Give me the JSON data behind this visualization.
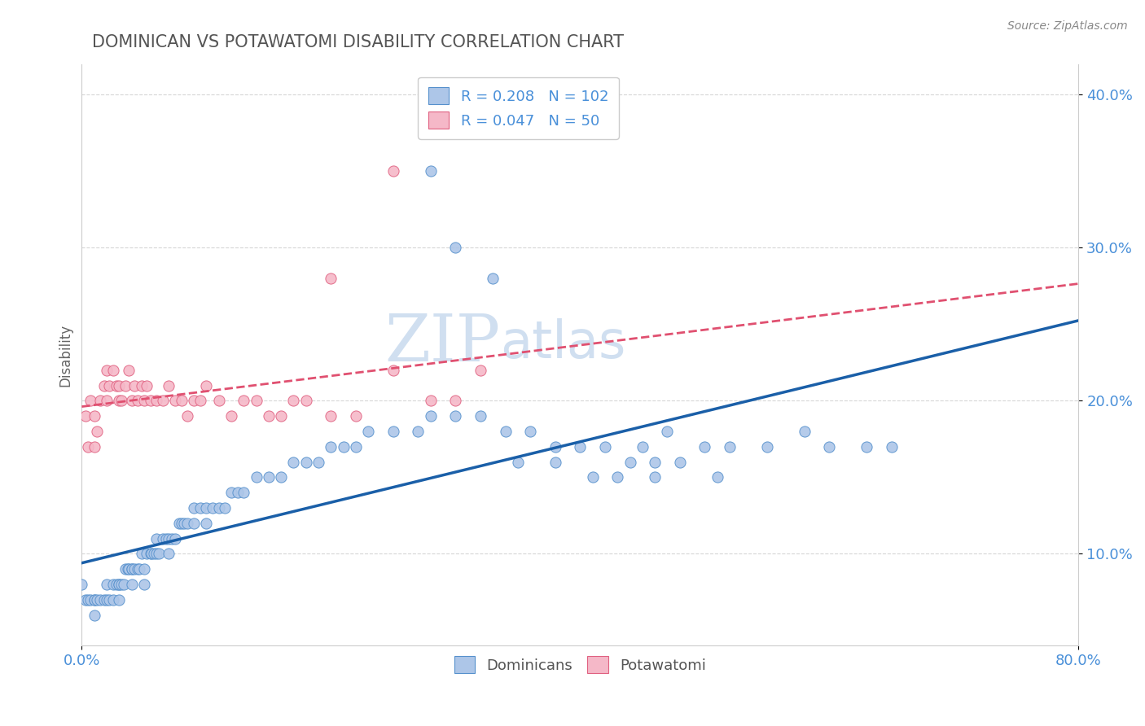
{
  "title": "DOMINICAN VS POTAWATOMI DISABILITY CORRELATION CHART",
  "source": "Source: ZipAtlas.com",
  "ylabel": "Disability",
  "watermark": "ZIPAtlas",
  "blue_label": "Dominicans",
  "pink_label": "Potawatomi",
  "blue_R": 0.208,
  "blue_N": 102,
  "pink_R": 0.047,
  "pink_N": 50,
  "blue_dot_color": "#adc6e8",
  "blue_edge_color": "#5590cc",
  "pink_dot_color": "#f5b8c8",
  "pink_edge_color": "#e06080",
  "blue_line_color": "#1a5fa8",
  "pink_line_color": "#e05070",
  "background_color": "#ffffff",
  "grid_color": "#cccccc",
  "title_color": "#555555",
  "axis_tick_color": "#4a90d9",
  "watermark_color": "#d0dff0",
  "xlim": [
    0.0,
    0.8
  ],
  "ylim": [
    0.04,
    0.42
  ],
  "blue_scatter_x": [
    0.0,
    0.003,
    0.005,
    0.007,
    0.01,
    0.01,
    0.01,
    0.012,
    0.015,
    0.018,
    0.02,
    0.02,
    0.022,
    0.025,
    0.025,
    0.028,
    0.03,
    0.03,
    0.03,
    0.032,
    0.034,
    0.035,
    0.037,
    0.038,
    0.04,
    0.04,
    0.04,
    0.042,
    0.045,
    0.046,
    0.048,
    0.05,
    0.05,
    0.052,
    0.055,
    0.056,
    0.058,
    0.06,
    0.06,
    0.062,
    0.065,
    0.068,
    0.07,
    0.07,
    0.072,
    0.075,
    0.078,
    0.08,
    0.082,
    0.085,
    0.09,
    0.09,
    0.095,
    0.1,
    0.1,
    0.105,
    0.11,
    0.115,
    0.12,
    0.125,
    0.13,
    0.14,
    0.15,
    0.16,
    0.17,
    0.18,
    0.19,
    0.2,
    0.21,
    0.22,
    0.23,
    0.25,
    0.27,
    0.28,
    0.3,
    0.32,
    0.34,
    0.36,
    0.38,
    0.4,
    0.42,
    0.45,
    0.47,
    0.5,
    0.52,
    0.55,
    0.58,
    0.6,
    0.63,
    0.65,
    0.48,
    0.51,
    0.44,
    0.46,
    0.28,
    0.3,
    0.33,
    0.35,
    0.38,
    0.41,
    0.43,
    0.46
  ],
  "blue_scatter_y": [
    0.08,
    0.07,
    0.07,
    0.07,
    0.06,
    0.07,
    0.07,
    0.07,
    0.07,
    0.07,
    0.07,
    0.08,
    0.07,
    0.07,
    0.08,
    0.08,
    0.07,
    0.08,
    0.08,
    0.08,
    0.08,
    0.09,
    0.09,
    0.09,
    0.08,
    0.09,
    0.09,
    0.09,
    0.09,
    0.09,
    0.1,
    0.08,
    0.09,
    0.1,
    0.1,
    0.1,
    0.1,
    0.1,
    0.11,
    0.1,
    0.11,
    0.11,
    0.1,
    0.11,
    0.11,
    0.11,
    0.12,
    0.12,
    0.12,
    0.12,
    0.12,
    0.13,
    0.13,
    0.12,
    0.13,
    0.13,
    0.13,
    0.13,
    0.14,
    0.14,
    0.14,
    0.15,
    0.15,
    0.15,
    0.16,
    0.16,
    0.16,
    0.17,
    0.17,
    0.17,
    0.18,
    0.18,
    0.18,
    0.19,
    0.19,
    0.19,
    0.18,
    0.18,
    0.17,
    0.17,
    0.17,
    0.17,
    0.18,
    0.17,
    0.17,
    0.17,
    0.18,
    0.17,
    0.17,
    0.17,
    0.16,
    0.15,
    0.16,
    0.15,
    0.35,
    0.3,
    0.28,
    0.16,
    0.16,
    0.15,
    0.15,
    0.16
  ],
  "pink_scatter_x": [
    0.003,
    0.005,
    0.007,
    0.01,
    0.01,
    0.012,
    0.015,
    0.018,
    0.02,
    0.02,
    0.022,
    0.025,
    0.028,
    0.03,
    0.03,
    0.032,
    0.035,
    0.038,
    0.04,
    0.042,
    0.045,
    0.048,
    0.05,
    0.052,
    0.055,
    0.06,
    0.065,
    0.07,
    0.075,
    0.08,
    0.085,
    0.09,
    0.095,
    0.1,
    0.11,
    0.12,
    0.13,
    0.14,
    0.15,
    0.16,
    0.17,
    0.18,
    0.2,
    0.22,
    0.25,
    0.28,
    0.3,
    0.32,
    0.25,
    0.2
  ],
  "pink_scatter_y": [
    0.19,
    0.17,
    0.2,
    0.17,
    0.19,
    0.18,
    0.2,
    0.21,
    0.2,
    0.22,
    0.21,
    0.22,
    0.21,
    0.2,
    0.21,
    0.2,
    0.21,
    0.22,
    0.2,
    0.21,
    0.2,
    0.21,
    0.2,
    0.21,
    0.2,
    0.2,
    0.2,
    0.21,
    0.2,
    0.2,
    0.19,
    0.2,
    0.2,
    0.21,
    0.2,
    0.19,
    0.2,
    0.2,
    0.19,
    0.19,
    0.2,
    0.2,
    0.19,
    0.19,
    0.22,
    0.2,
    0.2,
    0.22,
    0.35,
    0.28
  ]
}
